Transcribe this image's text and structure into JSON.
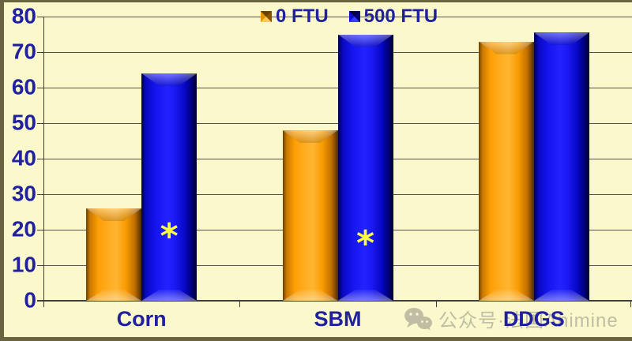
{
  "chart_data": {
    "type": "bar",
    "title": "",
    "xlabel": "",
    "ylabel": "",
    "categories": [
      "Corn",
      "SBM",
      "DDGS"
    ],
    "series": [
      {
        "name": "0 FTU",
        "color": "#FFA60E",
        "values": [
          26,
          48,
          73
        ]
      },
      {
        "name": "500 FTU",
        "color": "#1414F0",
        "values": [
          64,
          75,
          75.5
        ]
      }
    ],
    "ylim": [
      0,
      80
    ],
    "ytick_step": 10,
    "grid": true,
    "legend_position": "top-center",
    "annotations": [
      {
        "category": "Corn",
        "series": "500 FTU",
        "symbol": "*",
        "at_value": 18.5
      },
      {
        "category": "SBM",
        "series": "500 FTU",
        "symbol": "*",
        "at_value": 16.5
      }
    ]
  },
  "colors": {
    "background": "#FBF9CC",
    "frame": "#6A6340",
    "axis_text": "#21219F",
    "gridline": "#56544A",
    "annotation": "#FFFF3C",
    "watermark": "#8F8F86"
  },
  "watermark": {
    "icon": "wechat-icon",
    "text": "公众号·法国Animine"
  }
}
